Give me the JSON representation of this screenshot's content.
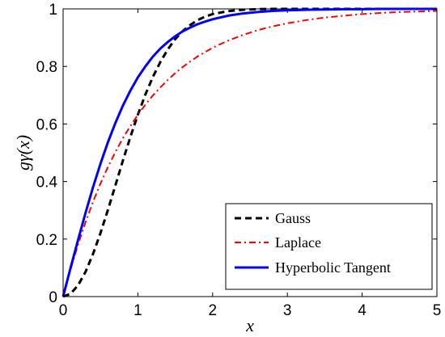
{
  "chart_data": {
    "type": "line",
    "xlabel": "x",
    "ylabel": "gγ(x)",
    "xlim": [
      0,
      5
    ],
    "ylim": [
      0,
      1
    ],
    "xticks": [
      "0",
      "1",
      "2",
      "3",
      "4",
      "5"
    ],
    "yticks": [
      "0",
      "0.2",
      "0.4",
      "0.6",
      "0.8",
      "1"
    ],
    "grid": false,
    "legend_position": "bottom-right",
    "x": [
      0,
      0.1,
      0.2,
      0.3,
      0.4,
      0.5,
      0.6,
      0.7,
      0.8,
      0.9,
      1.0,
      1.1,
      1.2,
      1.3,
      1.4,
      1.5,
      1.6,
      1.7,
      1.8,
      1.9,
      2.0,
      2.2,
      2.4,
      2.6,
      2.8,
      3.0,
      3.25,
      3.5,
      3.75,
      4.0,
      4.25,
      4.5,
      4.75,
      5.0
    ],
    "series": [
      {
        "name": "Gauss",
        "color": "#000000",
        "style": "dashed",
        "values": [
          0,
          0.01,
          0.039,
          0.086,
          0.148,
          0.221,
          0.302,
          0.387,
          0.473,
          0.555,
          0.632,
          0.702,
          0.763,
          0.815,
          0.859,
          0.895,
          0.923,
          0.944,
          0.961,
          0.973,
          0.982,
          0.992,
          0.997,
          0.999,
          1.0,
          1.0,
          1.0,
          1.0,
          1.0,
          1.0,
          1.0,
          1.0,
          1.0,
          1.0
        ]
      },
      {
        "name": "Laplace",
        "color": "#ff0000",
        "style": "dashdot",
        "values": [
          0,
          0.095,
          0.181,
          0.259,
          0.33,
          0.393,
          0.451,
          0.503,
          0.551,
          0.593,
          0.632,
          0.667,
          0.699,
          0.727,
          0.753,
          0.777,
          0.798,
          0.817,
          0.835,
          0.85,
          0.865,
          0.889,
          0.909,
          0.926,
          0.939,
          0.95,
          0.961,
          0.97,
          0.976,
          0.982,
          0.986,
          0.989,
          0.991,
          0.993
        ]
      },
      {
        "name": "Hyperbolic Tangent",
        "color": "#0000ff",
        "style": "solid",
        "values": [
          0,
          0.1,
          0.197,
          0.291,
          0.38,
          0.462,
          0.537,
          0.604,
          0.664,
          0.716,
          0.762,
          0.8,
          0.834,
          0.862,
          0.885,
          0.905,
          0.922,
          0.935,
          0.947,
          0.956,
          0.964,
          0.976,
          0.984,
          0.989,
          0.993,
          0.995,
          0.997,
          0.998,
          0.999,
          0.999,
          1.0,
          1.0,
          1.0,
          1.0
        ]
      }
    ]
  }
}
